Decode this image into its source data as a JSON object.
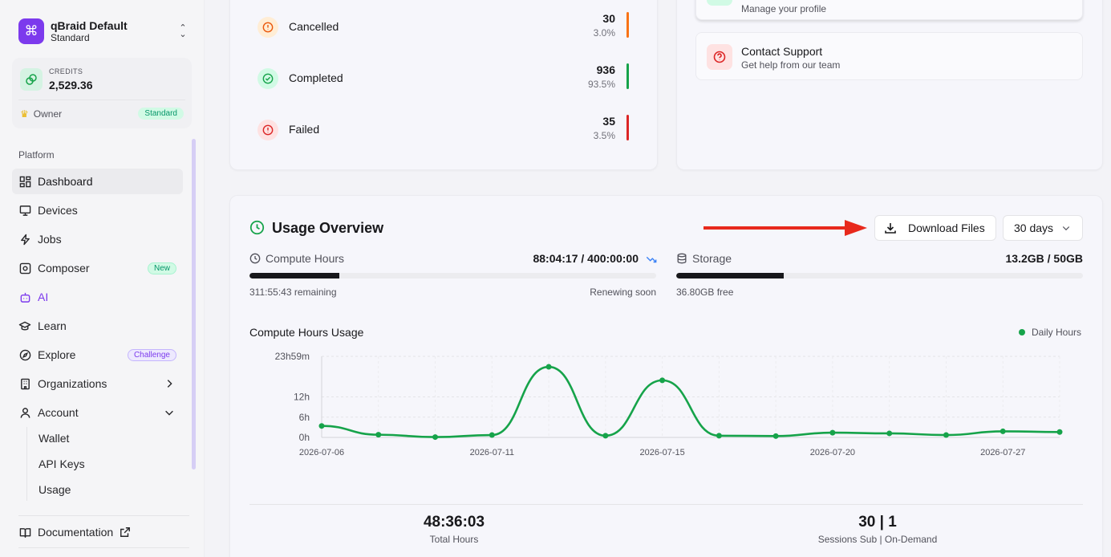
{
  "org": {
    "name": "qBraid Default",
    "plan": "Standard"
  },
  "credits": {
    "label": "CREDITS",
    "value": "2,529.36",
    "role": "Owner",
    "badge": "Standard"
  },
  "sidebar": {
    "section": "Platform",
    "items": [
      {
        "label": "Dashboard",
        "icon": "dashboard-icon"
      },
      {
        "label": "Devices",
        "icon": "monitor-icon"
      },
      {
        "label": "Jobs",
        "icon": "bolt-icon"
      },
      {
        "label": "Composer",
        "icon": "composer-icon",
        "badge": "New"
      },
      {
        "label": "AI",
        "icon": "bot-icon"
      },
      {
        "label": "Learn",
        "icon": "graduation-cap-icon"
      },
      {
        "label": "Explore",
        "icon": "compass-icon",
        "badge": "Challenge"
      },
      {
        "label": "Organizations",
        "icon": "building-icon"
      },
      {
        "label": "Account",
        "icon": "user-icon"
      }
    ],
    "account_sub": [
      "Wallet",
      "API Keys",
      "Usage"
    ],
    "documentation": "Documentation"
  },
  "job_status": [
    {
      "label": "Cancelled",
      "count": "30",
      "pct": "3.0%",
      "color": "#f97316"
    },
    {
      "label": "Completed",
      "count": "936",
      "pct": "93.5%",
      "color": "#16a34a"
    },
    {
      "label": "Failed",
      "count": "35",
      "pct": "3.5%",
      "color": "#dc2626"
    }
  ],
  "support": {
    "profile_sub": "Manage your profile",
    "contact_title": "Contact Support",
    "contact_sub": "Get help from our team"
  },
  "usage": {
    "title": "Usage Overview",
    "download_label": "Download Files",
    "range_label": "30 days",
    "compute": {
      "label": "Compute Hours",
      "value": "88:04:17 / 400:00:00",
      "remaining": "311:55:43 remaining",
      "renew": "Renewing soon",
      "fraction": 0.22
    },
    "storage": {
      "label": "Storage",
      "value": "13.2GB / 50GB",
      "free": "36.80GB free",
      "fraction": 0.264
    }
  },
  "chart_data": {
    "type": "line",
    "title": "Compute Hours Usage",
    "legend": "Daily Hours",
    "y_ticks": [
      "23h59m",
      "12h",
      "6h",
      "0h"
    ],
    "x_tick_labels": [
      "2026-07-06",
      "2026-07-11",
      "2026-07-15",
      "2026-07-20",
      "2026-07-27"
    ],
    "x_tick_index": [
      0,
      3,
      6,
      9,
      12
    ],
    "ylim": [
      0,
      24
    ],
    "series": [
      {
        "name": "Daily Hours",
        "color": "#16a34a",
        "values": [
          3.4,
          0.8,
          0.1,
          0.7,
          20.9,
          0.5,
          16.9,
          0.5,
          0.4,
          1.4,
          1.2,
          0.7,
          1.8,
          1.6
        ]
      }
    ]
  },
  "summary": {
    "total_hours": "48:36:03",
    "total_label": "Total Hours",
    "sessions": "30 | 1",
    "sessions_label": "Sessions Sub | On-Demand"
  }
}
